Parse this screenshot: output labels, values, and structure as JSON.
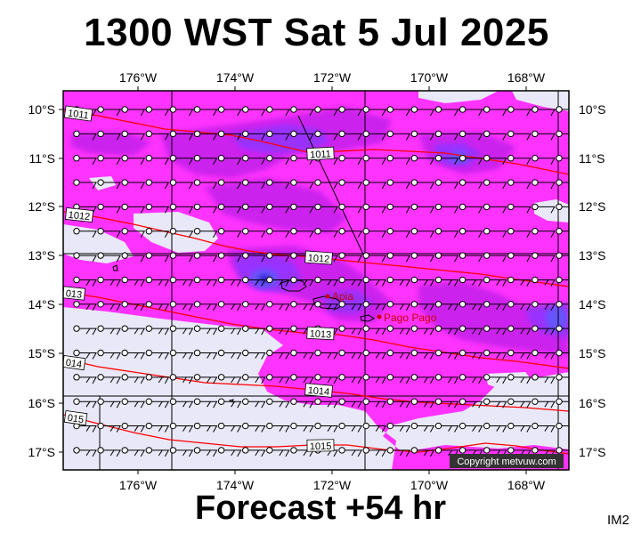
{
  "header": {
    "title": "1300 WST Sat 5 Jul 2025"
  },
  "footer": {
    "forecast_label": "Forecast +54 hr",
    "image_tag": "IM2"
  },
  "map": {
    "lon_labels_top": [
      "176°W",
      "174°W",
      "172°W",
      "170°W",
      "168°W"
    ],
    "lon_labels_bottom": [
      "176°W",
      "174°W",
      "172°W",
      "170°W",
      "168°W"
    ],
    "lat_labels_left": [
      "10°S",
      "11°S",
      "12°S",
      "13°S",
      "14°S",
      "15°S",
      "16°S",
      "17°S"
    ],
    "lat_labels_right": [
      "10°S",
      "11°S",
      "12°S",
      "13°S",
      "14°S",
      "15°S",
      "16°S",
      "17°S"
    ],
    "isobar_labels": [
      "1011",
      "1011",
      "1012",
      "1012",
      "013",
      "1013",
      "014",
      "1014",
      "015",
      "1015"
    ],
    "places": [
      {
        "name": "Apia",
        "color": "#cc0000"
      },
      {
        "name": "Pago Pago",
        "color": "#cc0000"
      }
    ],
    "copyright": "Copyright metvuw.com",
    "colors": {
      "background": "#e8e8f8",
      "rain_light": "#ff33ff",
      "rain_medium": "#cc22ee",
      "rain_heavy": "#9933ff",
      "rain_intense": "#6655ff",
      "isobar": "#ff0000"
    }
  }
}
